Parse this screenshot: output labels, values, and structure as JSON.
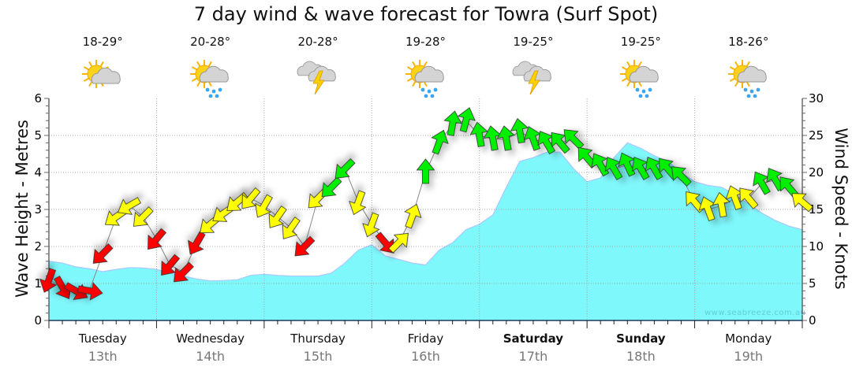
{
  "chart_data": {
    "type": "area",
    "title": "7 day wind & wave forecast for Towra  (Surf Spot)",
    "ylabel_left": "Wave Height - Metres",
    "ylabel_right": "Wind Speed - Knots",
    "ylim_left": [
      0,
      6
    ],
    "ylim_right": [
      0,
      30
    ],
    "yticks_left": [
      "0",
      "1",
      "2",
      "3",
      "4",
      "5",
      "6"
    ],
    "yticks_right": [
      "0",
      "5",
      "10",
      "15",
      "20",
      "25",
      "30"
    ],
    "grid": true,
    "interval_hours": 3,
    "days": [
      {
        "name": "Tuesday",
        "date": "13th",
        "weekend": false,
        "temp": "18-29°",
        "icon": "partly-cloudy"
      },
      {
        "name": "Wednesday",
        "date": "14th",
        "weekend": false,
        "temp": "20-28°",
        "icon": "showers"
      },
      {
        "name": "Thursday",
        "date": "15th",
        "weekend": false,
        "temp": "20-28°",
        "icon": "storm"
      },
      {
        "name": "Friday",
        "date": "16th",
        "weekend": false,
        "temp": "19-28°",
        "icon": "showers"
      },
      {
        "name": "Saturday",
        "date": "17th",
        "weekend": true,
        "temp": "19-25°",
        "icon": "storm"
      },
      {
        "name": "Sunday",
        "date": "18th",
        "weekend": true,
        "temp": "19-25°",
        "icon": "showers"
      },
      {
        "name": "Monday",
        "date": "19th",
        "weekend": false,
        "temp": "18-26°",
        "icon": "showers"
      }
    ],
    "wave_height_m": [
      1.6,
      1.55,
      1.45,
      1.4,
      1.32,
      1.38,
      1.43,
      1.42,
      1.38,
      1.28,
      1.2,
      1.12,
      1.07,
      1.08,
      1.1,
      1.22,
      1.25,
      1.22,
      1.2,
      1.2,
      1.2,
      1.28,
      1.55,
      1.9,
      2.05,
      1.75,
      1.65,
      1.55,
      1.5,
      1.9,
      2.1,
      2.45,
      2.6,
      2.85,
      3.6,
      4.3,
      4.4,
      4.55,
      4.55,
      4.1,
      3.75,
      3.85,
      4.4,
      4.8,
      4.65,
      4.45,
      4.3,
      4.0,
      3.75,
      3.65,
      3.6,
      3.4,
      3.15,
      2.9,
      2.7,
      2.55,
      2.45
    ],
    "wind_speed_kn": [
      5.5,
      4.5,
      4,
      4,
      9,
      14,
      15.5,
      14,
      11,
      7.5,
      6.5,
      10.5,
      13,
      14.5,
      16,
      16.5,
      15.5,
      14,
      12.5,
      10,
      16.5,
      18,
      20.5,
      16,
      13,
      10.5,
      10.5,
      14,
      20,
      24,
      26.5,
      27,
      25,
      24.5,
      24.5,
      25.5,
      24.5,
      24,
      24,
      24.5,
      22,
      21,
      20.5,
      21,
      20.5,
      20.5,
      20.5,
      19.5,
      16,
      15,
      15.5,
      16.5,
      16.5,
      18.5,
      19,
      18,
      16
    ],
    "wind_arrow_heading_deg": [
      200,
      150,
      120,
      100,
      225,
      235,
      240,
      225,
      220,
      220,
      225,
      210,
      230,
      235,
      230,
      220,
      210,
      215,
      215,
      225,
      225,
      225,
      225,
      200,
      200,
      140,
      45,
      20,
      0,
      20,
      10,
      15,
      350,
      350,
      350,
      350,
      340,
      330,
      320,
      315,
      320,
      330,
      330,
      335,
      330,
      330,
      320,
      315,
      320,
      340,
      350,
      340,
      320,
      330,
      330,
      320,
      310
    ],
    "wind_rating": [
      "red",
      "red",
      "red",
      "red",
      "red",
      "yellow",
      "yellow",
      "yellow",
      "red",
      "red",
      "red",
      "red",
      "yellow",
      "yellow",
      "yellow",
      "yellow",
      "yellow",
      "yellow",
      "yellow",
      "red",
      "yellow",
      "green",
      "green",
      "yellow",
      "yellow",
      "red",
      "yellow",
      "yellow",
      "green",
      "green",
      "green",
      "green",
      "green",
      "green",
      "green",
      "green",
      "green",
      "green",
      "green",
      "green",
      "green",
      "green",
      "green",
      "green",
      "green",
      "green",
      "green",
      "green",
      "yellow",
      "yellow",
      "yellow",
      "yellow",
      "yellow",
      "green",
      "green",
      "green",
      "yellow"
    ],
    "colors": {
      "wave": "#7ff8fc",
      "wave_line": "#a9c8ff",
      "red": "#ff0000",
      "yellow": "#ffff00",
      "green": "#00ee00"
    }
  },
  "watermark": "www.seabreeze.com.au"
}
